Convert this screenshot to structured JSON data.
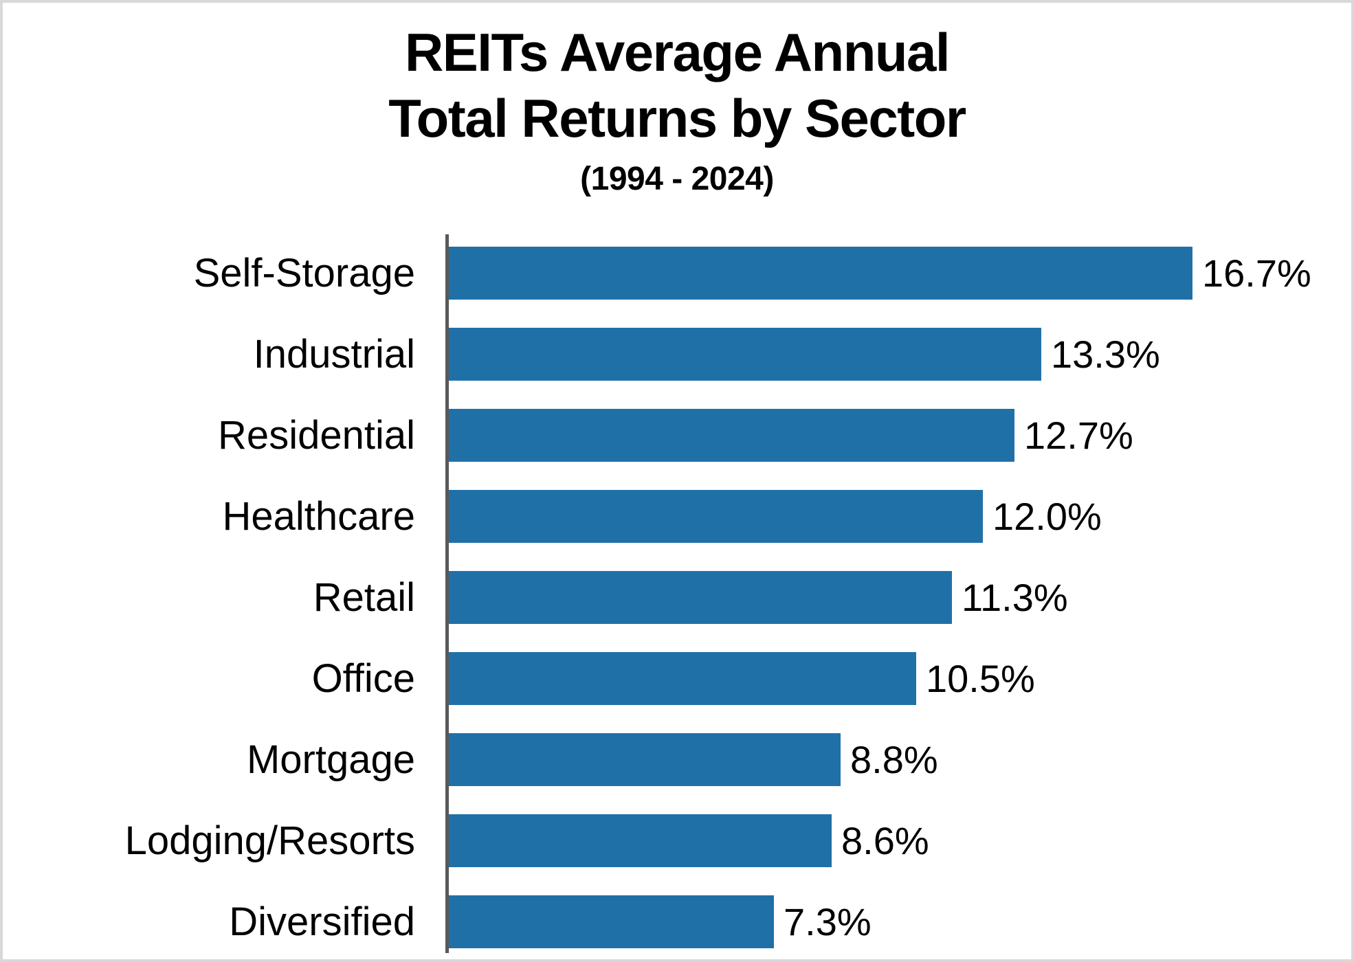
{
  "chart_data": {
    "type": "bar",
    "orientation": "horizontal",
    "title_lines": [
      "REITs Average Annual",
      "Total Returns by Sector"
    ],
    "subtitle": "(1994 - 2024)",
    "categories": [
      "Self-Storage",
      "Industrial",
      "Residential",
      "Healthcare",
      "Retail",
      "Office",
      "Mortgage",
      "Lodging/Resorts",
      "Diversified"
    ],
    "values": [
      16.7,
      13.3,
      12.7,
      12.0,
      11.3,
      10.5,
      8.8,
      8.6,
      7.3
    ],
    "value_labels": [
      "16.7%",
      "13.3%",
      "12.7%",
      "12.0%",
      "11.3%",
      "10.5%",
      "8.8%",
      "8.6%",
      "7.3%"
    ],
    "unit": "%",
    "xlim": [
      0,
      17
    ],
    "grid": false,
    "legend": false,
    "bar_color": "#2070A8",
    "axis_color": "#595959",
    "text_color": "#000000",
    "background_color": "#FFFFFF",
    "border_color": "#D8D8D8"
  }
}
